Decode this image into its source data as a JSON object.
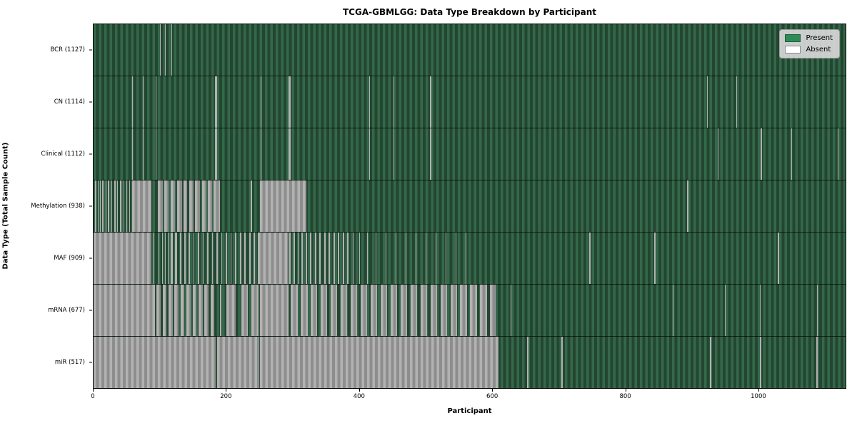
{
  "chart_data": {
    "type": "heatmap",
    "title": "TCGA-GBMLGG: Data Type Breakdown by Participant",
    "xlabel": "Participant",
    "ylabel": "Data Type (Total Sample Count)",
    "x_range": [
      0,
      1132
    ],
    "x_ticks": [
      0,
      200,
      400,
      600,
      800,
      1000
    ],
    "grid": false,
    "legend_position": "upper right",
    "legend_items": [
      {
        "label": "Present",
        "color": "#2e8b57"
      },
      {
        "label": "Absent",
        "color": "#ffffff"
      }
    ],
    "cell_states": {
      "present": "green",
      "absent": "white"
    },
    "rows": [
      {
        "name": "BCR",
        "label": "BCR (1127)",
        "present_count": 1127,
        "absent_runs": [
          [
            100,
            101
          ],
          [
            108,
            109
          ],
          [
            117,
            118
          ],
          [
            479,
            480
          ],
          [
            522,
            523
          ]
        ]
      },
      {
        "name": "CN",
        "label": "CN (1114)",
        "present_count": 1114,
        "absent_runs": [
          [
            58,
            59
          ],
          [
            74,
            75
          ],
          [
            94,
            95
          ],
          [
            183,
            186
          ],
          [
            252,
            253
          ],
          [
            294,
            297
          ],
          [
            415,
            416
          ],
          [
            452,
            453
          ],
          [
            506,
            508
          ],
          [
            923,
            925
          ],
          [
            968,
            969
          ]
        ]
      },
      {
        "name": "Clinical",
        "label": "Clinical (1112)",
        "present_count": 1112,
        "absent_runs": [
          [
            58,
            59
          ],
          [
            74,
            75
          ],
          [
            94,
            95
          ],
          [
            183,
            186
          ],
          [
            252,
            253
          ],
          [
            294,
            297
          ],
          [
            415,
            416
          ],
          [
            452,
            453
          ],
          [
            506,
            508
          ],
          [
            940,
            941
          ],
          [
            1004,
            1006
          ],
          [
            1050,
            1051
          ],
          [
            1120,
            1121
          ]
        ]
      },
      {
        "name": "Methylation",
        "label": "Methylation (938)",
        "present_count": 938,
        "absent_runs": [
          [
            2,
            4
          ],
          [
            6,
            8
          ],
          [
            10,
            11
          ],
          [
            13,
            15
          ],
          [
            18,
            19
          ],
          [
            22,
            24
          ],
          [
            27,
            28
          ],
          [
            31,
            33
          ],
          [
            36,
            37
          ],
          [
            40,
            42
          ],
          [
            45,
            46
          ],
          [
            49,
            51
          ],
          [
            54,
            55
          ],
          [
            58,
            87
          ],
          [
            97,
            104
          ],
          [
            106,
            113
          ],
          [
            116,
            123
          ],
          [
            126,
            133
          ],
          [
            135,
            141
          ],
          [
            144,
            150
          ],
          [
            153,
            160
          ],
          [
            163,
            170
          ],
          [
            172,
            179
          ],
          [
            181,
            190
          ],
          [
            237,
            239
          ],
          [
            250,
            320
          ],
          [
            893,
            895
          ]
        ]
      },
      {
        "name": "MAF",
        "label": "MAF (909)",
        "present_count": 909,
        "absent_runs": [
          [
            0,
            87
          ],
          [
            89,
            90
          ],
          [
            93,
            94
          ],
          [
            98,
            99
          ],
          [
            103,
            104
          ],
          [
            108,
            109
          ],
          [
            112,
            113
          ],
          [
            116,
            119
          ],
          [
            123,
            126
          ],
          [
            130,
            132
          ],
          [
            136,
            139
          ],
          [
            143,
            145
          ],
          [
            150,
            152
          ],
          [
            157,
            159
          ],
          [
            164,
            166
          ],
          [
            171,
            173
          ],
          [
            178,
            180
          ],
          [
            185,
            187
          ],
          [
            192,
            194
          ],
          [
            199,
            201
          ],
          [
            206,
            208
          ],
          [
            213,
            215
          ],
          [
            220,
            222
          ],
          [
            227,
            229
          ],
          [
            234,
            236
          ],
          [
            241,
            243
          ],
          [
            247,
            293
          ],
          [
            295,
            297
          ],
          [
            301,
            303
          ],
          [
            307,
            309
          ],
          [
            313,
            315
          ],
          [
            319,
            321
          ],
          [
            326,
            328
          ],
          [
            333,
            335
          ],
          [
            340,
            342
          ],
          [
            347,
            349
          ],
          [
            354,
            356
          ],
          [
            361,
            363
          ],
          [
            368,
            370
          ],
          [
            375,
            377
          ],
          [
            382,
            384
          ],
          [
            390,
            391
          ],
          [
            400,
            401
          ],
          [
            412,
            413
          ],
          [
            425,
            426
          ],
          [
            440,
            441
          ],
          [
            455,
            456
          ],
          [
            470,
            471
          ],
          [
            485,
            486
          ],
          [
            500,
            501
          ],
          [
            515,
            516
          ],
          [
            530,
            531
          ],
          [
            545,
            546
          ],
          [
            560,
            561
          ],
          [
            746,
            748
          ],
          [
            844,
            846
          ],
          [
            1030,
            1032
          ]
        ]
      },
      {
        "name": "mRNA",
        "label": "mRNA (677)",
        "present_count": 677,
        "absent_runs": [
          [
            0,
            92
          ],
          [
            95,
            101
          ],
          [
            104,
            110
          ],
          [
            113,
            119
          ],
          [
            122,
            128
          ],
          [
            131,
            137
          ],
          [
            140,
            146
          ],
          [
            149,
            155
          ],
          [
            158,
            164
          ],
          [
            167,
            173
          ],
          [
            176,
            182
          ],
          [
            190,
            192
          ],
          [
            200,
            214
          ],
          [
            222,
            232
          ],
          [
            238,
            248
          ],
          [
            250,
            294
          ],
          [
            297,
            307
          ],
          [
            312,
            322
          ],
          [
            327,
            337
          ],
          [
            342,
            352
          ],
          [
            357,
            367
          ],
          [
            372,
            382
          ],
          [
            387,
            397
          ],
          [
            402,
            412
          ],
          [
            417,
            427
          ],
          [
            432,
            442
          ],
          [
            447,
            457
          ],
          [
            462,
            472
          ],
          [
            477,
            487
          ],
          [
            492,
            502
          ],
          [
            507,
            517
          ],
          [
            522,
            532
          ],
          [
            537,
            547
          ],
          [
            552,
            562
          ],
          [
            567,
            577
          ],
          [
            582,
            592
          ],
          [
            597,
            605
          ],
          [
            628,
            629
          ],
          [
            872,
            873
          ],
          [
            950,
            951
          ],
          [
            1003,
            1004
          ],
          [
            1089,
            1090
          ]
        ]
      },
      {
        "name": "miR",
        "label": "miR (517)",
        "present_count": 517,
        "absent_runs": [
          [
            0,
            184
          ],
          [
            186,
            249
          ],
          [
            251,
            610
          ],
          [
            653,
            655
          ],
          [
            704,
            706
          ],
          [
            928,
            930
          ],
          [
            1003,
            1005
          ],
          [
            1088,
            1090
          ]
        ]
      }
    ]
  },
  "colors": {
    "present_stripe_light": "#35684b",
    "present_stripe_dark": "#234630",
    "absent_stripe_light": "#b2b2b2",
    "absent_stripe_dark": "#8d8d8d",
    "legend_present": "#2e8b57",
    "legend_absent": "#ffffff",
    "plot_border": "#000000"
  }
}
